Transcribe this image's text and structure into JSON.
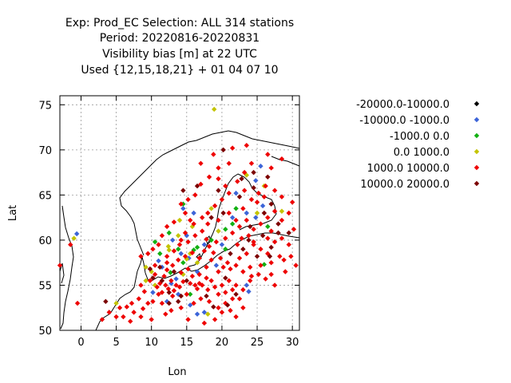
{
  "header": {
    "title_lines": [
      "Exp: Prod_EC   Selection: ALL    314 stations",
      "Period: 20220816-20220831",
      "Visibility bias [m] at  22 UTC",
      "Used {12,15,18,21} + 01 04 07 10"
    ]
  },
  "chart_data": {
    "type": "scatter",
    "xlabel": "Lon",
    "ylabel": "Lat",
    "xlim": [
      -3,
      31
    ],
    "ylim": [
      50,
      76
    ],
    "xticks": [
      0,
      5,
      10,
      15,
      20,
      25,
      30
    ],
    "yticks": [
      50,
      55,
      60,
      65,
      70,
      75
    ],
    "grid": true,
    "legend_placement": "top-right",
    "series": [
      {
        "name": "-20000.0-10000.0",
        "color": "#000000",
        "points": []
      },
      {
        "name": "-10000.0 -1000.0",
        "color": "#3c64d8",
        "points": [
          [
            -0.6,
            60.7
          ],
          [
            11.0,
            57.7
          ],
          [
            13.0,
            60.0
          ],
          [
            14.5,
            63.5
          ],
          [
            16.0,
            63.0
          ],
          [
            15.0,
            60.5
          ],
          [
            14.2,
            58.5
          ],
          [
            16.5,
            56.5
          ],
          [
            17.5,
            59.5
          ],
          [
            20.0,
            59.5
          ],
          [
            23.5,
            63.0
          ],
          [
            24.8,
            62.5
          ],
          [
            25.5,
            68.2
          ],
          [
            24.8,
            66.6
          ],
          [
            22.0,
            65.2
          ],
          [
            13.5,
            55.7
          ],
          [
            10.2,
            54.2
          ],
          [
            12.2,
            53.2
          ],
          [
            15.5,
            52.8
          ],
          [
            17.5,
            52.0
          ],
          [
            16.5,
            51.8
          ],
          [
            23.5,
            55.0
          ],
          [
            25.8,
            63.8
          ],
          [
            21.5,
            62.5
          ],
          [
            19.2,
            57.2
          ],
          [
            11.5,
            57.0
          ],
          [
            13.8,
            54.0
          ],
          [
            23.8,
            54.3
          ],
          [
            15.3,
            58.0
          ],
          [
            12.8,
            55.2
          ]
        ]
      },
      {
        "name": "-1000.0 0.0",
        "color": "#12b012",
        "points": [
          [
            14.5,
            64.0
          ],
          [
            10.5,
            59.8
          ],
          [
            12.5,
            60.8
          ],
          [
            20.5,
            61.2
          ],
          [
            21.5,
            61.8
          ],
          [
            11.2,
            58.5
          ],
          [
            13.8,
            59.0
          ],
          [
            14.5,
            57.5
          ],
          [
            26.0,
            57.3
          ],
          [
            16.5,
            59.2
          ],
          [
            20.5,
            59.0
          ],
          [
            15.5,
            54.0
          ],
          [
            22.0,
            63.5
          ],
          [
            26.5,
            61.5
          ],
          [
            18.5,
            60.0
          ],
          [
            12.7,
            56.4
          ],
          [
            16.0,
            58.9
          ]
        ]
      },
      {
        "name": "0.0 1000.0",
        "color": "#c4c400",
        "points": [
          [
            18.9,
            74.5
          ],
          [
            -1.0,
            60.2
          ],
          [
            14.0,
            62.2
          ],
          [
            15.8,
            61.5
          ],
          [
            13.8,
            60.5
          ],
          [
            12.4,
            59.3
          ],
          [
            15.5,
            58.5
          ],
          [
            15.0,
            57.9
          ],
          [
            12.5,
            58.9
          ],
          [
            16.5,
            57.5
          ],
          [
            10.5,
            55.0
          ],
          [
            9.2,
            55.5
          ],
          [
            5.0,
            53.0
          ],
          [
            18.0,
            51.8
          ],
          [
            26.0,
            66.0
          ],
          [
            23.5,
            67.2
          ],
          [
            28.5,
            63.2
          ],
          [
            25.0,
            63.0
          ],
          [
            18.5,
            63.5
          ],
          [
            19.5,
            61.0
          ],
          [
            9.2,
            57.0
          ],
          [
            10.0,
            56.5
          ],
          [
            14.5,
            56.2
          ]
        ]
      },
      {
        "name": "1000.0 10000.0",
        "color": "#ee0000",
        "points": [
          [
            -3.0,
            57.2
          ],
          [
            -1.5,
            59.5
          ],
          [
            -0.5,
            53.0
          ],
          [
            3.0,
            51.2
          ],
          [
            4.0,
            52.0
          ],
          [
            5.0,
            51.5
          ],
          [
            5.5,
            52.5
          ],
          [
            6.0,
            51.5
          ],
          [
            6.5,
            52.6
          ],
          [
            7.2,
            53.0
          ],
          [
            7.5,
            52.0
          ],
          [
            8.2,
            53.5
          ],
          [
            8.8,
            52.4
          ],
          [
            9.5,
            53.0
          ],
          [
            9.0,
            54.3
          ],
          [
            8.5,
            55.0
          ],
          [
            9.8,
            55.5
          ],
          [
            10.5,
            56.2
          ],
          [
            10.8,
            54.8
          ],
          [
            11.2,
            55.2
          ],
          [
            11.5,
            54.2
          ],
          [
            12.0,
            55.0
          ],
          [
            12.4,
            54.6
          ],
          [
            12.8,
            55.5
          ],
          [
            13.2,
            54.4
          ],
          [
            13.5,
            55.0
          ],
          [
            14.0,
            54.8
          ],
          [
            14.5,
            55.4
          ],
          [
            15.0,
            54.0
          ],
          [
            15.5,
            55.2
          ],
          [
            15.8,
            56.0
          ],
          [
            16.2,
            55.0
          ],
          [
            16.8,
            56.2
          ],
          [
            17.2,
            55.0
          ],
          [
            18.0,
            54.5
          ],
          [
            18.5,
            55.5
          ],
          [
            19.0,
            54.8
          ],
          [
            19.5,
            54.0
          ],
          [
            20.0,
            55.0
          ],
          [
            20.5,
            54.2
          ],
          [
            21.0,
            55.5
          ],
          [
            21.5,
            54.5
          ],
          [
            22.0,
            55.0
          ],
          [
            22.5,
            53.5
          ],
          [
            23.0,
            54.5
          ],
          [
            11.5,
            53.0
          ],
          [
            12.8,
            52.2
          ],
          [
            14.2,
            52.5
          ],
          [
            16.0,
            53.0
          ],
          [
            17.0,
            53.5
          ],
          [
            18.2,
            53.2
          ],
          [
            19.5,
            52.5
          ],
          [
            20.5,
            53.0
          ],
          [
            21.2,
            52.2
          ],
          [
            22.0,
            51.5
          ],
          [
            12.0,
            51.8
          ],
          [
            10.0,
            51.2
          ],
          [
            8.5,
            51.5
          ],
          [
            15.2,
            51.2
          ],
          [
            17.5,
            50.8
          ],
          [
            19.0,
            51.2
          ],
          [
            11.8,
            56.0
          ],
          [
            12.2,
            56.7
          ],
          [
            13.0,
            57.2
          ],
          [
            13.8,
            57.8
          ],
          [
            14.8,
            58.2
          ],
          [
            15.8,
            58.6
          ],
          [
            16.8,
            58.0
          ],
          [
            17.5,
            58.8
          ],
          [
            18.2,
            59.3
          ],
          [
            17.8,
            60.1
          ],
          [
            16.2,
            60.5
          ],
          [
            17.2,
            61.0
          ],
          [
            18.0,
            61.8
          ],
          [
            17.2,
            62.5
          ],
          [
            18.0,
            63.0
          ],
          [
            19.0,
            63.8
          ],
          [
            20.0,
            64.5
          ],
          [
            21.0,
            65.2
          ],
          [
            20.5,
            66.0
          ],
          [
            19.5,
            66.8
          ],
          [
            18.2,
            67.0
          ],
          [
            17.0,
            66.2
          ],
          [
            16.2,
            65.0
          ],
          [
            15.2,
            64.5
          ],
          [
            14.2,
            64.0
          ],
          [
            14.8,
            63.0
          ],
          [
            15.5,
            62.2
          ],
          [
            13.2,
            62.0
          ],
          [
            12.2,
            61.5
          ],
          [
            11.5,
            60.5
          ],
          [
            11.0,
            59.5
          ],
          [
            10.2,
            59.0
          ],
          [
            9.5,
            58.5
          ],
          [
            8.5,
            58.2
          ],
          [
            12.2,
            58.2
          ],
          [
            13.2,
            58.8
          ],
          [
            14.0,
            59.5
          ],
          [
            14.8,
            60.8
          ],
          [
            16.0,
            61.8
          ],
          [
            19.2,
            59.8
          ],
          [
            20.5,
            60.2
          ],
          [
            21.5,
            60.8
          ],
          [
            22.5,
            61.5
          ],
          [
            23.5,
            62.2
          ],
          [
            24.5,
            61.2
          ],
          [
            25.5,
            61.8
          ],
          [
            26.5,
            62.5
          ],
          [
            27.5,
            63.2
          ],
          [
            28.5,
            62.2
          ],
          [
            29.5,
            63.0
          ],
          [
            30.0,
            64.2
          ],
          [
            28.5,
            64.8
          ],
          [
            27.5,
            65.5
          ],
          [
            26.2,
            66.0
          ],
          [
            25.2,
            65.2
          ],
          [
            24.2,
            64.5
          ],
          [
            23.2,
            65.5
          ],
          [
            22.2,
            66.5
          ],
          [
            23.2,
            67.5
          ],
          [
            24.2,
            68.5
          ],
          [
            27.0,
            68.0
          ],
          [
            28.5,
            69.0
          ],
          [
            26.5,
            69.5
          ],
          [
            21.0,
            68.5
          ],
          [
            19.5,
            68.0
          ],
          [
            17.0,
            68.5
          ],
          [
            18.8,
            69.5
          ],
          [
            21.5,
            70.2
          ],
          [
            23.5,
            70.5
          ],
          [
            24.5,
            59.5
          ],
          [
            25.5,
            59.0
          ],
          [
            26.5,
            58.5
          ],
          [
            27.5,
            59.8
          ],
          [
            28.5,
            60.2
          ],
          [
            29.5,
            59.5
          ],
          [
            28.2,
            58.2
          ],
          [
            27.0,
            57.5
          ],
          [
            25.5,
            57.2
          ],
          [
            24.0,
            57.0
          ],
          [
            23.0,
            56.5
          ],
          [
            22.0,
            57.2
          ],
          [
            21.2,
            56.8
          ],
          [
            22.5,
            58.0
          ],
          [
            23.5,
            58.5
          ],
          [
            24.2,
            56.0
          ],
          [
            25.2,
            56.2
          ],
          [
            26.2,
            55.7
          ],
          [
            27.0,
            56.2
          ],
          [
            27.5,
            55.0
          ],
          [
            23.8,
            60.5
          ],
          [
            22.8,
            60.2
          ],
          [
            26.5,
            60.2
          ],
          [
            27.0,
            61.0
          ],
          [
            25.0,
            64.2
          ],
          [
            26.0,
            64.8
          ],
          [
            23.0,
            63.5
          ],
          [
            22.0,
            62.2
          ],
          [
            21.0,
            63.0
          ],
          [
            19.5,
            62.2
          ],
          [
            20.8,
            57.5
          ],
          [
            19.8,
            58.0
          ],
          [
            18.5,
            57.8
          ],
          [
            17.8,
            57.0
          ],
          [
            16.8,
            55.2
          ],
          [
            15.2,
            56.8
          ],
          [
            14.2,
            56.4
          ],
          [
            13.0,
            53.8
          ],
          [
            11.0,
            54.0
          ],
          [
            16.5,
            54.6
          ],
          [
            17.8,
            55.8
          ],
          [
            19.5,
            56.5
          ],
          [
            20.2,
            57.0
          ],
          [
            28.8,
            57.8
          ],
          [
            29.8,
            58.2
          ],
          [
            30.5,
            57.2
          ],
          [
            29.0,
            56.5
          ],
          [
            30.2,
            61.2
          ],
          [
            20.0,
            52.0
          ],
          [
            21.5,
            53.5
          ],
          [
            23.0,
            52.5
          ],
          [
            10.2,
            53.2
          ],
          [
            7.0,
            51.0
          ],
          [
            24.5,
            59.8
          ],
          [
            22.2,
            59.5
          ],
          [
            12.2,
            57.5
          ],
          [
            10.5,
            57.2
          ],
          [
            15.2,
            59.8
          ],
          [
            14.2,
            60.0
          ],
          [
            18.8,
            58.6
          ],
          [
            24.0,
            55.5
          ]
        ]
      },
      {
        "name": "10000.0 20000.0",
        "color": "#7c0000",
        "points": [
          [
            3.5,
            53.2
          ],
          [
            9.8,
            56.8
          ],
          [
            10.2,
            55.8
          ],
          [
            11.5,
            55.5
          ],
          [
            12.5,
            54.2
          ],
          [
            13.8,
            53.2
          ],
          [
            15.0,
            55.5
          ],
          [
            13.2,
            56.5
          ],
          [
            17.8,
            53.8
          ],
          [
            18.8,
            52.6
          ],
          [
            20.8,
            52.8
          ],
          [
            22.0,
            54.0
          ],
          [
            21.2,
            58.5
          ],
          [
            23.0,
            59.0
          ],
          [
            25.0,
            58.2
          ],
          [
            27.0,
            59.2
          ],
          [
            28.0,
            60.8
          ],
          [
            25.8,
            60.5
          ],
          [
            24.0,
            61.5
          ],
          [
            26.0,
            63.0
          ],
          [
            27.0,
            64.0
          ],
          [
            24.5,
            65.8
          ],
          [
            22.5,
            64.8
          ],
          [
            20.2,
            63.0
          ],
          [
            18.5,
            62.5
          ],
          [
            19.5,
            65.5
          ],
          [
            22.8,
            66.8
          ],
          [
            20.2,
            70.0
          ],
          [
            14.5,
            65.5
          ],
          [
            16.5,
            66.0
          ],
          [
            24.5,
            67.5
          ],
          [
            26.5,
            67.0
          ],
          [
            11.2,
            57.0
          ],
          [
            12.5,
            53.0
          ],
          [
            14.2,
            53.8
          ],
          [
            20.5,
            55.8
          ],
          [
            23.8,
            60.0
          ],
          [
            26.8,
            58.2
          ],
          [
            29.5,
            60.8
          ],
          [
            28.0,
            61.8
          ]
        ]
      }
    ]
  }
}
